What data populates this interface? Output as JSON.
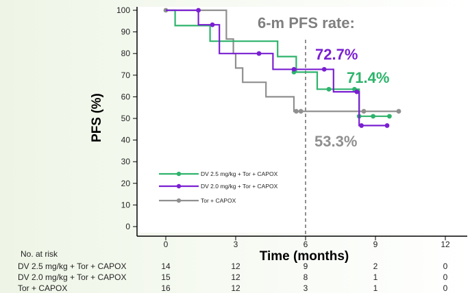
{
  "chart_data": {
    "type": "line",
    "step": true,
    "xlabel": "Time (months)",
    "ylabel": "PFS (%)",
    "xlim": [
      0,
      12
    ],
    "ylim": [
      0,
      100
    ],
    "xticks": [
      0,
      3,
      6,
      9,
      12
    ],
    "yticks": [
      0,
      10,
      20,
      30,
      40,
      50,
      60,
      70,
      80,
      90,
      100
    ],
    "grid": false,
    "legend_position": "lower-left",
    "annotation_title": "6-m PFS rate:",
    "reference_line_x": 6,
    "series": [
      {
        "name": "DV 2.5 mg/kg + Tor + CAPOX",
        "color": "#2db36b",
        "rate_label": "71.4%",
        "x": [
          0,
          0.4,
          0.4,
          1.9,
          1.9,
          4.8,
          4.8,
          5.6,
          5.6,
          6.5,
          6.5,
          8.3,
          8.3,
          9.6
        ],
        "y": [
          100,
          100,
          92.9,
          92.9,
          85.7,
          85.7,
          78.6,
          78.6,
          71.4,
          71.4,
          63.5,
          63.5,
          51,
          51
        ],
        "censors": [
          [
            5.5,
            71.4
          ],
          [
            7.0,
            63.5
          ],
          [
            8.1,
            63.5
          ],
          [
            8.3,
            51
          ],
          [
            8.9,
            51
          ],
          [
            9.6,
            51
          ]
        ]
      },
      {
        "name": "DV 2.0 mg/kg + Tor + CAPOX",
        "color": "#7a1fd1",
        "rate_label": "72.7%",
        "x": [
          0,
          1.4,
          1.4,
          2.3,
          2.3,
          4.6,
          4.6,
          7.2,
          7.2,
          8.3,
          8.3,
          9.5
        ],
        "y": [
          100,
          100,
          93.3,
          93.3,
          80,
          80,
          72.7,
          72.7,
          62.3,
          62.3,
          46.7,
          46.7
        ],
        "censors": [
          [
            1.4,
            100
          ],
          [
            2.0,
            93.3
          ],
          [
            4.0,
            80
          ],
          [
            5.5,
            72.7
          ],
          [
            6.8,
            72.7
          ],
          [
            8.2,
            62.3
          ],
          [
            8.4,
            46.7
          ],
          [
            9.5,
            46.7
          ]
        ]
      },
      {
        "name": "Tor + CAPOX",
        "color": "#8f8f8f",
        "rate_label": "53.3%",
        "x": [
          0,
          2.6,
          2.6,
          2.9,
          2.9,
          3.0,
          3.0,
          3.3,
          3.3,
          4.3,
          4.3,
          5.5,
          5.5,
          10
        ],
        "y": [
          100,
          100,
          86.7,
          86.7,
          80,
          80,
          73.3,
          73.3,
          66.7,
          66.7,
          60,
          60,
          53.3,
          53.3
        ],
        "censors": [
          [
            0,
            100
          ],
          [
            5.6,
            53.3
          ],
          [
            5.8,
            53.3
          ],
          [
            8.5,
            53.3
          ],
          [
            10,
            53.3
          ]
        ]
      }
    ],
    "risk_table": {
      "title": "No. at risk",
      "times": [
        0,
        3,
        6,
        9,
        12
      ],
      "rows": [
        {
          "label": "DV 2.5 mg/kg + Tor + CAPOX",
          "counts": [
            14,
            12,
            9,
            2,
            0
          ]
        },
        {
          "label": "DV 2.0 mg/kg + Tor + CAPOX",
          "counts": [
            15,
            12,
            8,
            1,
            0
          ]
        },
        {
          "label": "Tor + CAPOX",
          "counts": [
            16,
            12,
            3,
            1,
            0
          ]
        }
      ]
    }
  }
}
